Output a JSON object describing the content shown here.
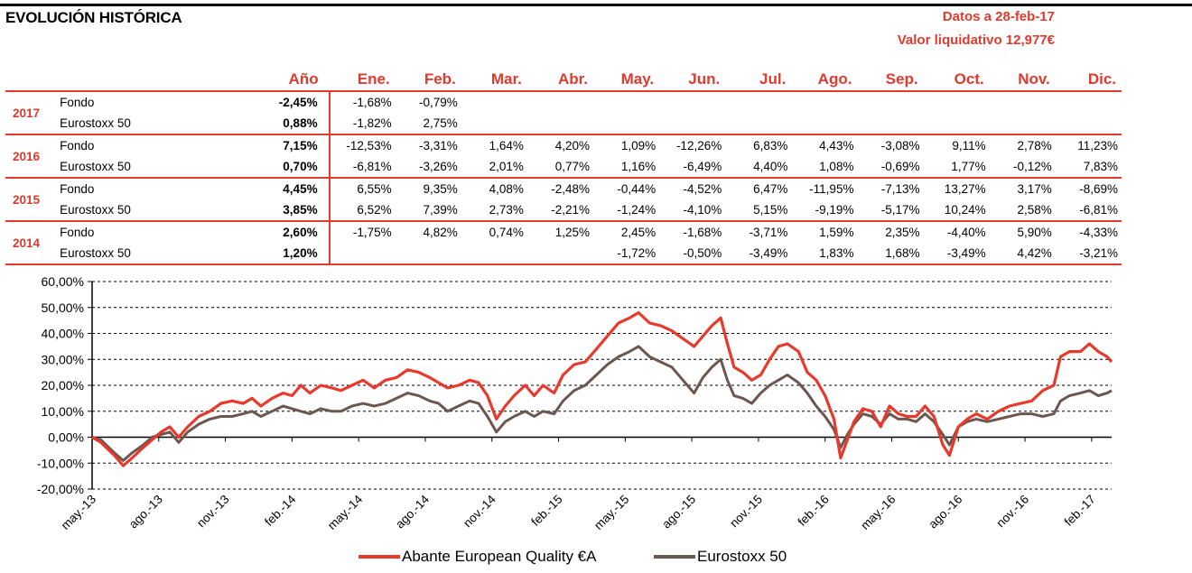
{
  "header": {
    "title": "EVOLUCIÓN HISTÓRICA",
    "date_line": "Datos a 28-feb-17",
    "value_line": "Valor liquidativo 12,977€"
  },
  "table": {
    "year_header": "Año",
    "months": [
      "Ene.",
      "Feb.",
      "Mar.",
      "Abr.",
      "May.",
      "Jun.",
      "Jul.",
      "Ago.",
      "Sep.",
      "Oct.",
      "Nov.",
      "Dic."
    ],
    "rows": [
      {
        "year": "2017",
        "fund": {
          "label": "Fondo",
          "total": "-2,45%",
          "values": [
            "-1,68%",
            "-0,79%",
            "",
            "",
            "",
            "",
            "",
            "",
            "",
            "",
            "",
            ""
          ]
        },
        "index": {
          "label": "Eurostoxx 50",
          "total": "0,88%",
          "values": [
            "-1,82%",
            "2,75%",
            "",
            "",
            "",
            "",
            "",
            "",
            "",
            "",
            "",
            ""
          ]
        }
      },
      {
        "year": "2016",
        "fund": {
          "label": "Fondo",
          "total": "7,15%",
          "values": [
            "-12,53%",
            "-3,31%",
            "1,64%",
            "4,20%",
            "1,09%",
            "-12,26%",
            "6,83%",
            "4,43%",
            "-3,08%",
            "9,11%",
            "2,78%",
            "11,23%"
          ]
        },
        "index": {
          "label": "Eurostoxx 50",
          "total": "0,70%",
          "values": [
            "-6,81%",
            "-3,26%",
            "2,01%",
            "0,77%",
            "1,16%",
            "-6,49%",
            "4,40%",
            "1,08%",
            "-0,69%",
            "1,77%",
            "-0,12%",
            "7,83%"
          ]
        }
      },
      {
        "year": "2015",
        "fund": {
          "label": "Fondo",
          "total": "4,45%",
          "values": [
            "6,55%",
            "9,35%",
            "4,08%",
            "-2,48%",
            "-0,44%",
            "-4,52%",
            "6,47%",
            "-11,95%",
            "-7,13%",
            "13,27%",
            "3,17%",
            "-8,69%"
          ]
        },
        "index": {
          "label": "Eurostoxx 50",
          "total": "3,85%",
          "values": [
            "6,52%",
            "7,39%",
            "2,73%",
            "-2,21%",
            "-1,24%",
            "-4,10%",
            "5,15%",
            "-9,19%",
            "-5,17%",
            "10,24%",
            "2,58%",
            "-6,81%"
          ]
        }
      },
      {
        "year": "2014",
        "fund": {
          "label": "Fondo",
          "total": "2,60%",
          "values": [
            "-1,75%",
            "4,82%",
            "0,74%",
            "1,25%",
            "2,45%",
            "-1,68%",
            "-3,71%",
            "1,59%",
            "2,35%",
            "-4,40%",
            "5,90%",
            "-4,33%"
          ]
        },
        "index": {
          "label": "Eurostoxx 50",
          "total": "1,20%",
          "values": [
            "",
            "",
            "",
            "",
            "-1,72%",
            "-0,50%",
            "-3,49%",
            "1,83%",
            "1,68%",
            "-3,49%",
            "4,42%",
            "-3,21%"
          ]
        }
      }
    ]
  },
  "chart_data": {
    "type": "line",
    "ylim": [
      -20,
      60
    ],
    "ytick_values": [
      -20,
      -10,
      0,
      10,
      20,
      30,
      40,
      50,
      60
    ],
    "ytick_labels": [
      "-20,00%",
      "-10,00%",
      "0,00%",
      "10,00%",
      "20,00%",
      "30,00%",
      "40,00%",
      "50,00%",
      "60,00%"
    ],
    "x_range": [
      0,
      45.9
    ],
    "xtick_positions": [
      0,
      3,
      6,
      9,
      12,
      15,
      18,
      21,
      24,
      27,
      30,
      33,
      36,
      39,
      42,
      45
    ],
    "xtick_labels": [
      "may.-13",
      "ago.-13",
      "nov.-13",
      "feb.-14",
      "may.-14",
      "ago.-14",
      "nov.-14",
      "feb.-15",
      "may.-15",
      "ago.-15",
      "nov.-15",
      "feb.-16",
      "may.-16",
      "ago.-16",
      "nov.-16",
      "feb.-17"
    ],
    "grid": "horizontal",
    "legend_position": "bottom",
    "series": [
      {
        "name": "Abante European Quality €A",
        "color": "#e8392c",
        "points": [
          [
            0,
            0
          ],
          [
            0.4,
            -2
          ],
          [
            1.0,
            -7
          ],
          [
            1.4,
            -11
          ],
          [
            1.8,
            -8
          ],
          [
            2.3,
            -4
          ],
          [
            2.7,
            -1
          ],
          [
            3.1,
            2
          ],
          [
            3.5,
            4
          ],
          [
            3.9,
            0
          ],
          [
            4.3,
            4
          ],
          [
            4.8,
            8
          ],
          [
            5.3,
            10
          ],
          [
            5.8,
            13
          ],
          [
            6.3,
            14
          ],
          [
            6.8,
            13
          ],
          [
            7.2,
            15
          ],
          [
            7.6,
            12
          ],
          [
            8.1,
            15
          ],
          [
            8.6,
            17
          ],
          [
            9.0,
            16
          ],
          [
            9.4,
            20
          ],
          [
            9.8,
            17
          ],
          [
            10.3,
            20
          ],
          [
            10.8,
            19
          ],
          [
            11.2,
            18
          ],
          [
            11.7,
            20
          ],
          [
            12.2,
            22
          ],
          [
            12.7,
            19
          ],
          [
            13.2,
            22
          ],
          [
            13.7,
            23
          ],
          [
            14.2,
            26
          ],
          [
            14.7,
            25
          ],
          [
            15.2,
            23
          ],
          [
            15.6,
            21
          ],
          [
            16.0,
            19
          ],
          [
            16.5,
            20
          ],
          [
            17.0,
            22
          ],
          [
            17.4,
            21
          ],
          [
            17.8,
            16
          ],
          [
            18.2,
            7
          ],
          [
            18.6,
            12
          ],
          [
            19.0,
            16
          ],
          [
            19.5,
            20
          ],
          [
            19.9,
            16
          ],
          [
            20.3,
            20
          ],
          [
            20.8,
            17
          ],
          [
            21.2,
            24
          ],
          [
            21.7,
            28
          ],
          [
            22.2,
            29
          ],
          [
            22.7,
            34
          ],
          [
            23.2,
            39
          ],
          [
            23.7,
            44
          ],
          [
            24.2,
            46
          ],
          [
            24.6,
            48
          ],
          [
            25.1,
            44
          ],
          [
            25.6,
            43
          ],
          [
            26.1,
            41
          ],
          [
            26.6,
            38
          ],
          [
            27.1,
            35
          ],
          [
            27.5,
            39
          ],
          [
            27.9,
            43
          ],
          [
            28.3,
            46
          ],
          [
            28.6,
            36
          ],
          [
            28.9,
            27
          ],
          [
            29.3,
            25
          ],
          [
            29.7,
            22
          ],
          [
            30.1,
            24
          ],
          [
            30.5,
            30
          ],
          [
            30.9,
            35
          ],
          [
            31.3,
            36
          ],
          [
            31.8,
            33
          ],
          [
            32.2,
            25
          ],
          [
            32.6,
            22
          ],
          [
            33.0,
            16
          ],
          [
            33.4,
            7
          ],
          [
            33.7,
            -8
          ],
          [
            34.0,
            -1
          ],
          [
            34.3,
            6
          ],
          [
            34.7,
            11
          ],
          [
            35.1,
            10
          ],
          [
            35.5,
            4
          ],
          [
            35.9,
            12
          ],
          [
            36.3,
            9
          ],
          [
            36.7,
            8
          ],
          [
            37.1,
            8
          ],
          [
            37.5,
            12
          ],
          [
            37.9,
            8
          ],
          [
            38.3,
            -3
          ],
          [
            38.6,
            -7
          ],
          [
            39.0,
            4
          ],
          [
            39.4,
            7
          ],
          [
            39.8,
            9
          ],
          [
            40.3,
            7
          ],
          [
            40.8,
            10
          ],
          [
            41.3,
            12
          ],
          [
            41.8,
            13
          ],
          [
            42.3,
            14
          ],
          [
            42.8,
            18
          ],
          [
            43.3,
            20
          ],
          [
            43.6,
            31
          ],
          [
            44.0,
            33
          ],
          [
            44.5,
            33
          ],
          [
            44.9,
            36
          ],
          [
            45.3,
            33
          ],
          [
            45.7,
            31
          ],
          [
            45.9,
            29
          ]
        ]
      },
      {
        "name": "Eurostoxx 50",
        "color": "#6b5650",
        "points": [
          [
            0,
            0
          ],
          [
            0.4,
            -1
          ],
          [
            1.0,
            -6
          ],
          [
            1.4,
            -9
          ],
          [
            1.8,
            -6
          ],
          [
            2.3,
            -3
          ],
          [
            2.7,
            0
          ],
          [
            3.1,
            1
          ],
          [
            3.5,
            2
          ],
          [
            3.9,
            -2
          ],
          [
            4.3,
            2
          ],
          [
            4.8,
            5
          ],
          [
            5.3,
            7
          ],
          [
            5.8,
            8
          ],
          [
            6.3,
            8
          ],
          [
            6.8,
            9
          ],
          [
            7.2,
            10
          ],
          [
            7.6,
            8
          ],
          [
            8.1,
            10
          ],
          [
            8.6,
            12
          ],
          [
            9.0,
            11
          ],
          [
            9.4,
            10
          ],
          [
            9.8,
            9
          ],
          [
            10.3,
            11
          ],
          [
            10.8,
            10
          ],
          [
            11.2,
            10
          ],
          [
            11.7,
            12
          ],
          [
            12.2,
            13
          ],
          [
            12.7,
            12
          ],
          [
            13.2,
            13
          ],
          [
            13.7,
            15
          ],
          [
            14.2,
            17
          ],
          [
            14.7,
            16
          ],
          [
            15.2,
            14
          ],
          [
            15.6,
            13
          ],
          [
            16.0,
            10
          ],
          [
            16.5,
            12
          ],
          [
            17.0,
            14
          ],
          [
            17.4,
            13
          ],
          [
            17.8,
            8
          ],
          [
            18.2,
            2
          ],
          [
            18.6,
            6
          ],
          [
            19.0,
            8
          ],
          [
            19.5,
            10
          ],
          [
            19.9,
            8
          ],
          [
            20.3,
            10
          ],
          [
            20.8,
            9
          ],
          [
            21.2,
            14
          ],
          [
            21.7,
            18
          ],
          [
            22.2,
            20
          ],
          [
            22.7,
            24
          ],
          [
            23.2,
            28
          ],
          [
            23.7,
            31
          ],
          [
            24.2,
            33
          ],
          [
            24.6,
            35
          ],
          [
            25.1,
            31
          ],
          [
            25.6,
            29
          ],
          [
            26.1,
            27
          ],
          [
            26.6,
            22
          ],
          [
            27.1,
            17
          ],
          [
            27.5,
            23
          ],
          [
            27.9,
            27
          ],
          [
            28.3,
            30
          ],
          [
            28.6,
            22
          ],
          [
            28.9,
            16
          ],
          [
            29.3,
            15
          ],
          [
            29.7,
            13
          ],
          [
            30.1,
            17
          ],
          [
            30.5,
            20
          ],
          [
            30.9,
            22
          ],
          [
            31.3,
            24
          ],
          [
            31.8,
            21
          ],
          [
            32.2,
            17
          ],
          [
            32.6,
            12
          ],
          [
            33.0,
            8
          ],
          [
            33.4,
            3
          ],
          [
            33.7,
            -4
          ],
          [
            34.0,
            1
          ],
          [
            34.3,
            5
          ],
          [
            34.7,
            9
          ],
          [
            35.1,
            8
          ],
          [
            35.5,
            5
          ],
          [
            35.9,
            9
          ],
          [
            36.3,
            7
          ],
          [
            36.7,
            7
          ],
          [
            37.1,
            6
          ],
          [
            37.5,
            9
          ],
          [
            37.9,
            6
          ],
          [
            38.3,
            1
          ],
          [
            38.6,
            -3
          ],
          [
            39.0,
            4
          ],
          [
            39.4,
            6
          ],
          [
            39.8,
            7
          ],
          [
            40.3,
            6
          ],
          [
            40.8,
            7
          ],
          [
            41.3,
            8
          ],
          [
            41.8,
            9
          ],
          [
            42.3,
            9
          ],
          [
            42.8,
            8
          ],
          [
            43.3,
            9
          ],
          [
            43.6,
            14
          ],
          [
            44.0,
            16
          ],
          [
            44.5,
            17
          ],
          [
            44.9,
            18
          ],
          [
            45.3,
            16
          ],
          [
            45.7,
            17
          ],
          [
            45.9,
            18
          ]
        ]
      }
    ]
  }
}
